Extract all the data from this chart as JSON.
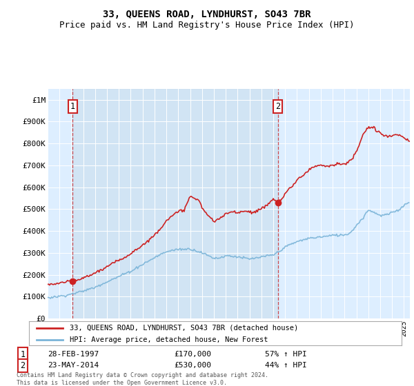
{
  "title": "33, QUEENS ROAD, LYNDHURST, SO43 7BR",
  "subtitle": "Price paid vs. HM Land Registry's House Price Index (HPI)",
  "xlim": [
    1995.0,
    2025.5
  ],
  "ylim": [
    0,
    1050000
  ],
  "yticks": [
    0,
    100000,
    200000,
    300000,
    400000,
    500000,
    600000,
    700000,
    800000,
    900000,
    1000000
  ],
  "ytick_labels": [
    "£0",
    "£100K",
    "£200K",
    "£300K",
    "£400K",
    "£500K",
    "£600K",
    "£700K",
    "£800K",
    "£900K",
    "£1M"
  ],
  "hpi_color": "#7ab4d8",
  "price_color": "#cc2222",
  "vline1_x": 1997.12,
  "vline2_x": 2014.38,
  "point1_x": 1997.12,
  "point1_y": 170000,
  "point2_x": 2014.38,
  "point2_y": 530000,
  "legend_label1": "33, QUEENS ROAD, LYNDHURST, SO43 7BR (detached house)",
  "legend_label2": "HPI: Average price, detached house, New Forest",
  "footnote": "Contains HM Land Registry data © Crown copyright and database right 2024.\nThis data is licensed under the Open Government Licence v3.0.",
  "background_color": "#ddeeff",
  "shade_color": "#cce0f0",
  "grid_color": "#ffffff",
  "title_fontsize": 10,
  "subtitle_fontsize": 9
}
